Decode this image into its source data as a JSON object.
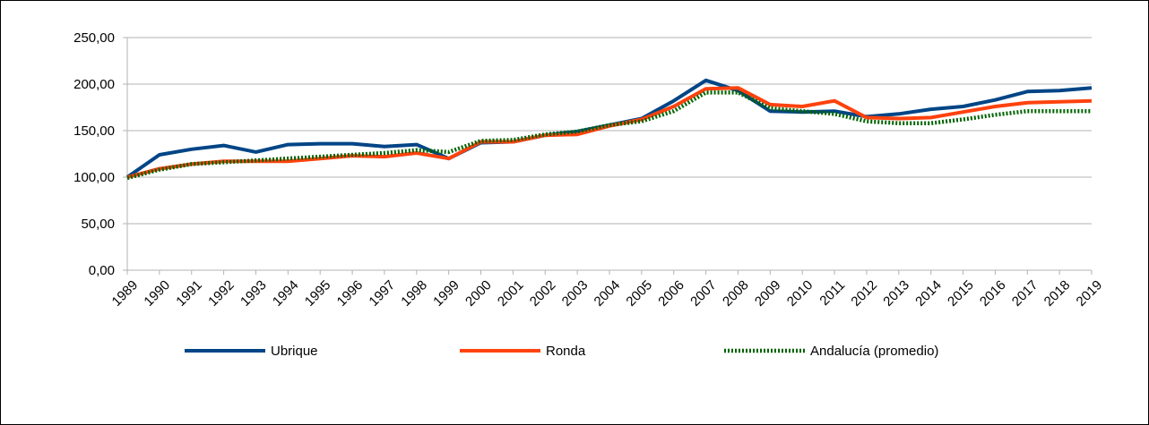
{
  "chart_data": {
    "type": "line",
    "title": "",
    "xlabel": "",
    "ylabel": "",
    "ylim": [
      0,
      250
    ],
    "yticks": [
      "0,00",
      "50,00",
      "100,00",
      "150,00",
      "200,00",
      "250,00"
    ],
    "grid": true,
    "legend": "bottom",
    "x": [
      "1989",
      "1990",
      "1991",
      "1992",
      "1993",
      "1994",
      "1995",
      "1996",
      "1997",
      "1998",
      "1999",
      "2000",
      "2001",
      "2002",
      "2003",
      "2004",
      "2005",
      "2006",
      "2007",
      "2008",
      "2009",
      "2010",
      "2011",
      "2012",
      "2013",
      "2014",
      "2015",
      "2016",
      "2017",
      "2018",
      "2019"
    ],
    "series": [
      {
        "name": "Ubrique",
        "color": "#004586",
        "style": "solid",
        "values": [
          100,
          124,
          130,
          134,
          127,
          135,
          136,
          136,
          133,
          135,
          120,
          137,
          138,
          145,
          149,
          156,
          163,
          182,
          204,
          193,
          171,
          170,
          171,
          165,
          168,
          173,
          176,
          183,
          192,
          193,
          196
        ]
      },
      {
        "name": "Ronda",
        "color": "#ff420e",
        "style": "solid",
        "values": [
          100,
          109,
          114,
          117,
          117,
          117,
          120,
          123,
          122,
          126,
          120,
          138,
          138,
          145,
          146,
          155,
          162,
          176,
          195,
          196,
          178,
          176,
          182,
          164,
          163,
          164,
          170,
          176,
          180,
          181,
          182
        ]
      },
      {
        "name": "Andalucía (promedio)",
        "color": "#006400",
        "style": "dotted",
        "values": [
          99,
          108,
          114,
          116,
          118,
          120,
          122,
          124,
          126,
          129,
          127,
          139,
          140,
          146,
          149,
          156,
          160,
          171,
          191,
          191,
          174,
          171,
          168,
          160,
          158,
          158,
          162,
          167,
          171,
          171,
          171
        ]
      }
    ]
  }
}
